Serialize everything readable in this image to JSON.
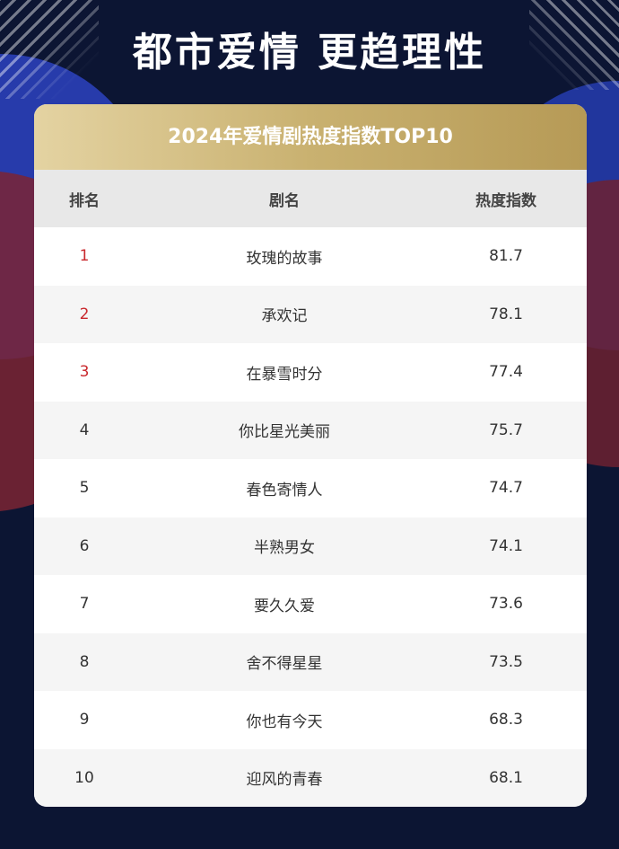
{
  "headline": "都市爱情  更趋理性",
  "card": {
    "title": "2024年爱情剧热度指数TOP10",
    "header": {
      "rank": "排名",
      "name": "剧名",
      "score": "热度指数"
    }
  },
  "colors": {
    "background": "#0c1533",
    "title_gold": "#c9b170",
    "top3_rank": "#c9282d"
  },
  "chart_data": {
    "type": "table",
    "title": "2024年爱情剧热度指数TOP10",
    "columns": [
      "排名",
      "剧名",
      "热度指数"
    ],
    "rows": [
      {
        "rank": "1",
        "name": "玫瑰的故事",
        "score": "81.7"
      },
      {
        "rank": "2",
        "name": "承欢记",
        "score": "78.1"
      },
      {
        "rank": "3",
        "name": "在暴雪时分",
        "score": "77.4"
      },
      {
        "rank": "4",
        "name": "你比星光美丽",
        "score": "75.7"
      },
      {
        "rank": "5",
        "name": "春色寄情人",
        "score": "74.7"
      },
      {
        "rank": "6",
        "name": "半熟男女",
        "score": "74.1"
      },
      {
        "rank": "7",
        "name": "要久久爱",
        "score": "73.6"
      },
      {
        "rank": "8",
        "name": "舍不得星星",
        "score": "73.5"
      },
      {
        "rank": "9",
        "name": "你也有今天",
        "score": "68.3"
      },
      {
        "rank": "10",
        "name": "迎风的青春",
        "score": "68.1"
      }
    ]
  }
}
